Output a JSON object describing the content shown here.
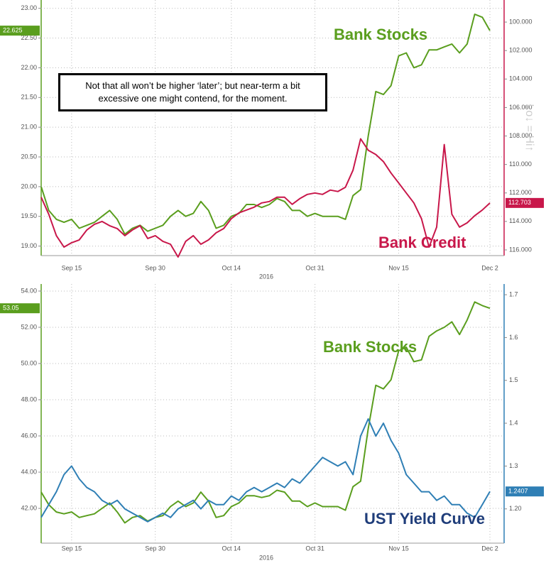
{
  "chart_data": [
    {
      "type": "line",
      "categories": [
        null,
        null,
        null,
        null,
        "Sep 15",
        null,
        null,
        null,
        null,
        null,
        null,
        null,
        null,
        null,
        null,
        "Sep 30",
        null,
        null,
        null,
        null,
        null,
        null,
        null,
        null,
        null,
        "Oct 14",
        null,
        null,
        null,
        null,
        null,
        null,
        null,
        null,
        null,
        null,
        "Oct 31",
        null,
        null,
        null,
        null,
        null,
        null,
        null,
        null,
        null,
        null,
        "Nov 15",
        null,
        null,
        null,
        null,
        null,
        null,
        null,
        null,
        null,
        null,
        null,
        "Dec 2"
      ],
      "x_label": "2016",
      "annotation": "Not that all won’t be higher ‘later’; but near-term a bit excessive one might contend, for the moment.",
      "y2_label": "Lo↓ = Hi↑",
      "ylim": [
        18.84,
        23.14
      ],
      "yticks": [
        {
          "value": 19,
          "label": "19.00"
        },
        {
          "value": 19.5,
          "label": "19.50"
        },
        {
          "value": 20,
          "label": "20.00"
        },
        {
          "value": 20.5,
          "label": "20.50"
        },
        {
          "value": 21,
          "label": "21.00"
        },
        {
          "value": 21.5,
          "label": "21.50"
        },
        {
          "value": 22,
          "label": "22.00"
        },
        {
          "value": 22.5,
          "label": "22.50"
        },
        {
          "value": 23,
          "label": "23.00"
        }
      ],
      "y2lim": [
        116.4,
        98.45
      ],
      "y2ticks": [
        {
          "value": 100,
          "label": "100.000"
        },
        {
          "value": 102,
          "label": "102.000"
        },
        {
          "value": 104,
          "label": "104.000"
        },
        {
          "value": 106,
          "label": "106.000"
        },
        {
          "value": 108,
          "label": "108.000"
        },
        {
          "value": 110,
          "label": "110.000"
        },
        {
          "value": 112,
          "label": "112.000"
        },
        {
          "value": 114,
          "label": "114.000"
        },
        {
          "value": 116,
          "label": "116.000"
        }
      ],
      "grid": true,
      "series": [
        {
          "name": "Bank Stocks",
          "color": "#5a9e1e",
          "values": [
            20.0,
            19.6,
            19.45,
            19.4,
            19.45,
            19.3,
            19.35,
            19.4,
            19.5,
            19.6,
            19.45,
            19.2,
            19.3,
            19.35,
            19.25,
            19.3,
            19.35,
            19.5,
            19.6,
            19.5,
            19.55,
            19.75,
            19.6,
            19.3,
            19.35,
            19.5,
            19.55,
            19.7,
            19.7,
            19.65,
            19.7,
            19.8,
            19.75,
            19.6,
            19.6,
            19.5,
            19.55,
            19.5,
            19.5,
            19.5,
            19.45,
            19.85,
            19.95,
            20.85,
            21.6,
            21.55,
            21.7,
            22.2,
            22.25,
            22.0,
            22.05,
            22.3,
            22.3,
            22.35,
            22.4,
            22.25,
            22.4,
            22.9,
            22.85,
            22.625
          ]
        },
        {
          "name": "Bank Credit",
          "color": "#c8174a",
          "axis": "y2",
          "values": [
            112.3,
            113.5,
            115.0,
            115.8,
            115.5,
            115.3,
            114.6,
            114.2,
            114.0,
            114.3,
            114.5,
            115.0,
            114.6,
            114.3,
            115.2,
            115.0,
            115.4,
            115.6,
            116.5,
            115.4,
            115.0,
            115.6,
            115.3,
            114.8,
            114.5,
            113.8,
            113.4,
            113.2,
            113.0,
            112.7,
            112.6,
            112.3,
            112.3,
            112.8,
            112.4,
            112.1,
            112.0,
            112.1,
            111.8,
            111.9,
            111.6,
            110.4,
            108.2,
            109.0,
            109.3,
            109.8,
            110.6,
            111.3,
            112.0,
            112.7,
            113.8,
            115.8,
            114.4,
            108.6,
            113.5,
            114.4,
            114.1,
            113.6,
            113.2,
            112.703
          ]
        }
      ]
    },
    {
      "type": "line",
      "categories": [
        null,
        null,
        null,
        null,
        "Sep 15",
        null,
        null,
        null,
        null,
        null,
        null,
        null,
        null,
        null,
        null,
        "Sep 30",
        null,
        null,
        null,
        null,
        null,
        null,
        null,
        null,
        null,
        "Oct 14",
        null,
        null,
        null,
        null,
        null,
        null,
        null,
        null,
        null,
        null,
        "Oct 31",
        null,
        null,
        null,
        null,
        null,
        null,
        null,
        null,
        null,
        null,
        "Nov 15",
        null,
        null,
        null,
        null,
        null,
        null,
        null,
        null,
        null,
        null,
        null,
        "Dec 2"
      ],
      "x_label": "2016",
      "ylim": [
        40.08,
        54.39
      ],
      "yticks": [
        {
          "value": 42,
          "label": "42.00"
        },
        {
          "value": 44,
          "label": "44.00"
        },
        {
          "value": 46,
          "label": "46.00"
        },
        {
          "value": 48,
          "label": "48.00"
        },
        {
          "value": 50,
          "label": "50.00"
        },
        {
          "value": 52,
          "label": "52.00"
        },
        {
          "value": 54,
          "label": "54.00"
        }
      ],
      "y2lim": [
        1.12,
        1.725
      ],
      "y2ticks": [
        {
          "value": 1.2,
          "label": "1.20"
        },
        1.3,
        1.4,
        1.5,
        1.6,
        1.7
      ],
      "grid": true,
      "series": [
        {
          "name": "Bank Stocks",
          "color": "#5a9e1e",
          "values": [
            42.9,
            42.2,
            41.8,
            41.7,
            41.8,
            41.5,
            41.6,
            41.7,
            42.0,
            42.3,
            41.8,
            41.2,
            41.5,
            41.6,
            41.3,
            41.5,
            41.6,
            42.1,
            42.4,
            42.1,
            42.3,
            42.9,
            42.4,
            41.5,
            41.6,
            42.1,
            42.3,
            42.7,
            42.7,
            42.6,
            42.7,
            43.0,
            42.9,
            42.4,
            42.4,
            42.1,
            42.3,
            42.1,
            42.1,
            42.1,
            41.9,
            43.2,
            43.5,
            46.4,
            48.8,
            48.6,
            49.1,
            50.7,
            50.9,
            50.1,
            50.2,
            51.5,
            51.8,
            52.0,
            52.3,
            51.6,
            52.4,
            53.4,
            53.2,
            53.05
          ]
        },
        {
          "name": "UST Yield Curve",
          "color": "#2f7fb5",
          "axis": "y2",
          "values": [
            1.18,
            1.21,
            1.24,
            1.28,
            1.3,
            1.27,
            1.25,
            1.24,
            1.22,
            1.21,
            1.22,
            1.2,
            1.19,
            1.18,
            1.17,
            1.18,
            1.19,
            1.18,
            1.2,
            1.21,
            1.22,
            1.2,
            1.22,
            1.21,
            1.21,
            1.23,
            1.22,
            1.24,
            1.25,
            1.24,
            1.25,
            1.26,
            1.25,
            1.27,
            1.26,
            1.28,
            1.3,
            1.32,
            1.31,
            1.3,
            1.31,
            1.28,
            1.37,
            1.41,
            1.37,
            1.4,
            1.36,
            1.33,
            1.28,
            1.26,
            1.24,
            1.24,
            1.22,
            1.23,
            1.21,
            1.21,
            1.19,
            1.18,
            1.21,
            1.2407
          ]
        }
      ]
    }
  ]
}
